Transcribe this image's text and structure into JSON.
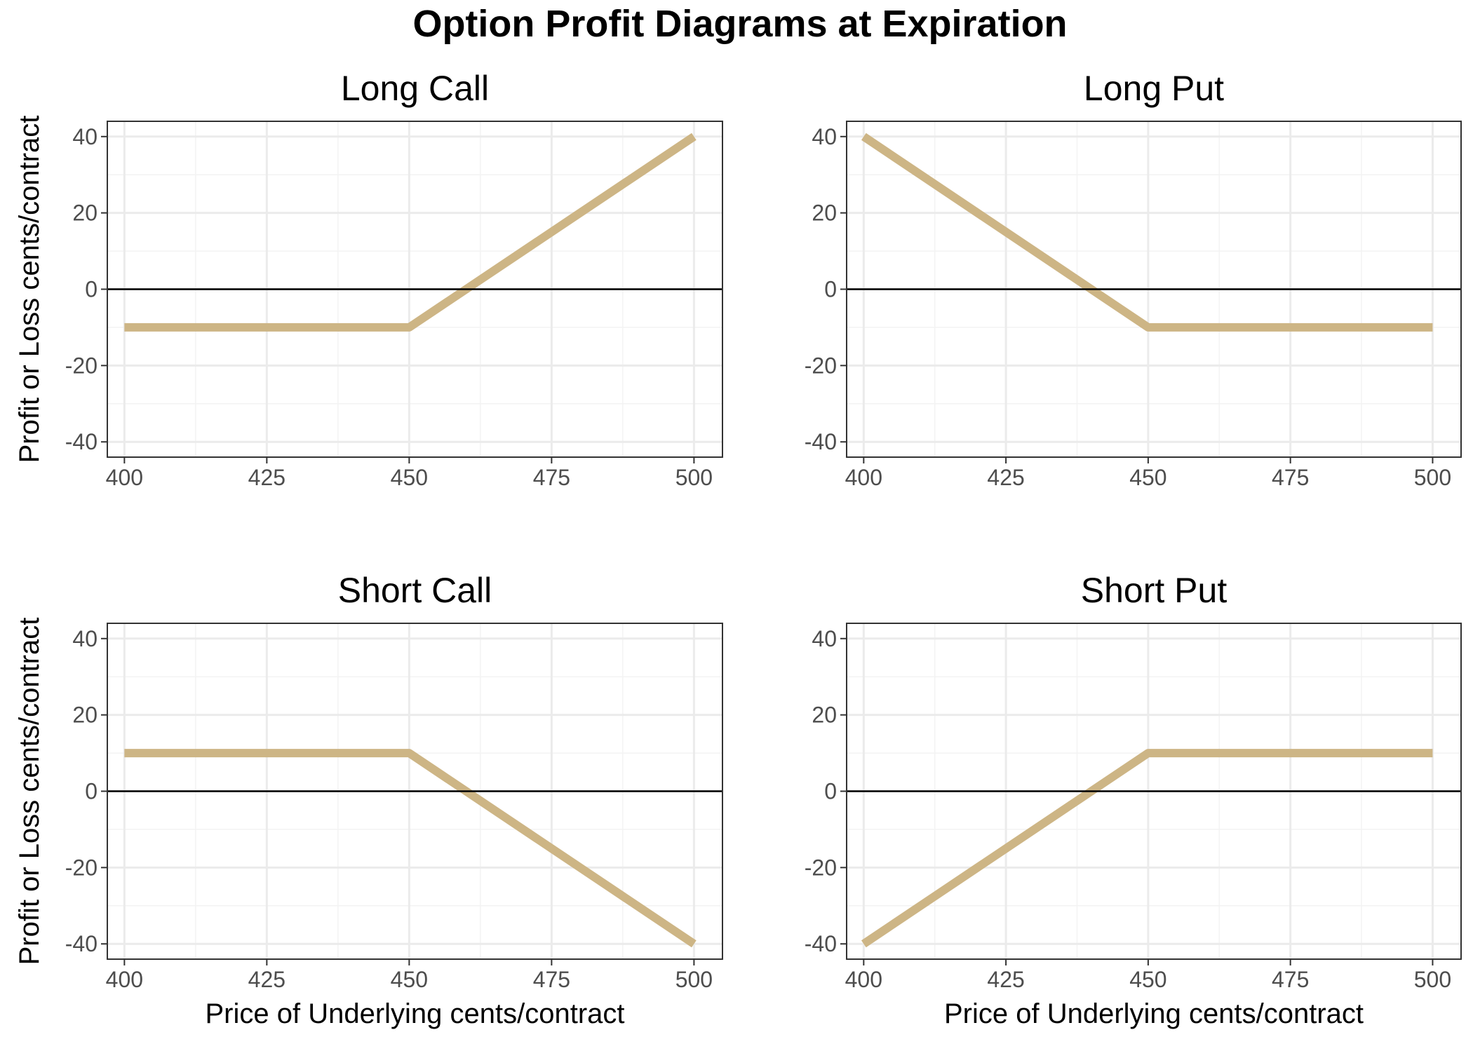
{
  "figure": {
    "title": "Option Profit Diagrams at Expiration"
  },
  "style": {
    "line_color": "#cdb585",
    "zero_line_color": "#000000",
    "grid_major_color": "#ebebeb",
    "grid_minor_color": "#f3f3f3",
    "panel_border_color": "#333333",
    "tick_label_color": "#4d4d4d"
  },
  "chart_data": [
    {
      "type": "line",
      "title": "Long Call",
      "xlabel": "",
      "ylabel": "Profit or Loss cents/contract",
      "xlim": [
        397,
        505
      ],
      "ylim": [
        -44,
        44
      ],
      "x_ticks": [
        "400",
        "425",
        "450",
        "475",
        "500"
      ],
      "y_ticks": [
        "40",
        "20",
        "0",
        "-20",
        "-40"
      ],
      "grid": true,
      "zero_line": true,
      "series": [
        {
          "x": [
            400,
            450,
            500
          ],
          "y": [
            -10,
            -10,
            40
          ]
        }
      ]
    },
    {
      "type": "line",
      "title": "Long Put",
      "xlabel": "",
      "ylabel": "",
      "xlim": [
        397,
        505
      ],
      "ylim": [
        -44,
        44
      ],
      "x_ticks": [
        "400",
        "425",
        "450",
        "475",
        "500"
      ],
      "y_ticks": [
        "40",
        "20",
        "0",
        "-20",
        "-40"
      ],
      "grid": true,
      "zero_line": true,
      "series": [
        {
          "x": [
            400,
            450,
            500
          ],
          "y": [
            40,
            -10,
            -10
          ]
        }
      ]
    },
    {
      "type": "line",
      "title": "Short Call",
      "xlabel": "Price of Underlying cents/contract",
      "ylabel": "Profit or Loss cents/contract",
      "xlim": [
        397,
        505
      ],
      "ylim": [
        -44,
        44
      ],
      "x_ticks": [
        "400",
        "425",
        "450",
        "475",
        "500"
      ],
      "y_ticks": [
        "40",
        "20",
        "0",
        "-20",
        "-40"
      ],
      "grid": true,
      "zero_line": true,
      "series": [
        {
          "x": [
            400,
            450,
            500
          ],
          "y": [
            10,
            10,
            -40
          ]
        }
      ]
    },
    {
      "type": "line",
      "title": "Short Put",
      "xlabel": "Price of Underlying cents/contract",
      "ylabel": "",
      "xlim": [
        397,
        505
      ],
      "ylim": [
        -44,
        44
      ],
      "x_ticks": [
        "400",
        "425",
        "450",
        "475",
        "500"
      ],
      "y_ticks": [
        "40",
        "20",
        "0",
        "-20",
        "-40"
      ],
      "grid": true,
      "zero_line": true,
      "series": [
        {
          "x": [
            400,
            450,
            500
          ],
          "y": [
            -40,
            10,
            10
          ]
        }
      ]
    }
  ]
}
